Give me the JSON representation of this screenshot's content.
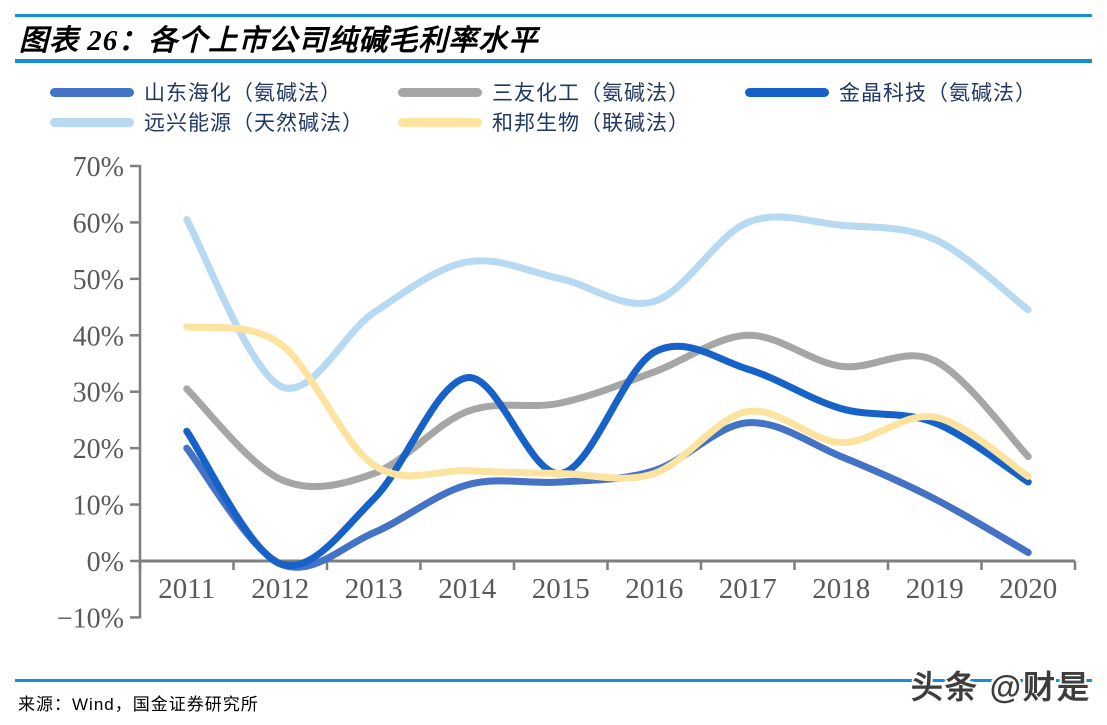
{
  "header": {
    "title": "图表 26：各个上市公司纯碱毛利率水平"
  },
  "footer": {
    "source": "来源：Wind，国金证券研究所",
    "watermark": "头条 @财是"
  },
  "colors": {
    "rule_blue": "#1190D5",
    "axis_line": "#7F7F7F",
    "tick_label": "#595959",
    "legend_text": "#1F3864",
    "title_text": "#000000"
  },
  "chart_data": {
    "type": "line",
    "title": "各个上市公司纯碱毛利率水平",
    "xlabel": "",
    "ylabel": "",
    "x": [
      2011,
      2012,
      2013,
      2014,
      2015,
      2016,
      2017,
      2018,
      2019,
      2020
    ],
    "ylim": [
      -10,
      70
    ],
    "yticks": [
      70,
      60,
      50,
      40,
      30,
      20,
      10,
      0,
      -10
    ],
    "ytick_suffix": "%",
    "grid": false,
    "legend_position": "top",
    "legend_rows": [
      [
        0,
        1,
        2
      ],
      [
        3,
        4
      ]
    ],
    "series": [
      {
        "name": "山东海化",
        "process": "氨碱法",
        "label": "山东海化（氨碱法）",
        "color": "#4472C4",
        "values": [
          20,
          -0.5,
          5,
          13.5,
          14,
          16,
          24.5,
          18.5,
          11,
          1.5
        ]
      },
      {
        "name": "三友化工",
        "process": "氨碱法",
        "label": "三友化工（氨碱法）",
        "color": "#A6A6A6",
        "values": [
          30.5,
          14.5,
          15.5,
          26.5,
          28,
          33.5,
          40,
          34.5,
          35.5,
          18.5
        ]
      },
      {
        "name": "金晶科技",
        "process": "氨碱法",
        "label": "金晶科技（氨碱法）",
        "color": "#1762C9",
        "values": [
          23,
          -0.5,
          11,
          32.5,
          15.5,
          37,
          34,
          27,
          24.5,
          14
        ]
      },
      {
        "name": "远兴能源",
        "process": "天然碱法",
        "label": "远兴能源（天然碱法）",
        "color": "#B7D9F2",
        "values": [
          60.5,
          31,
          44,
          53,
          50,
          46,
          60,
          59.5,
          57,
          44.5
        ]
      },
      {
        "name": "和邦生物",
        "process": "联碱法",
        "label": "和邦生物（联碱法）",
        "color": "#FCE4A0",
        "values": [
          41.5,
          38.5,
          17,
          16,
          15.5,
          15.5,
          26.5,
          21,
          25.5,
          15
        ]
      }
    ]
  }
}
